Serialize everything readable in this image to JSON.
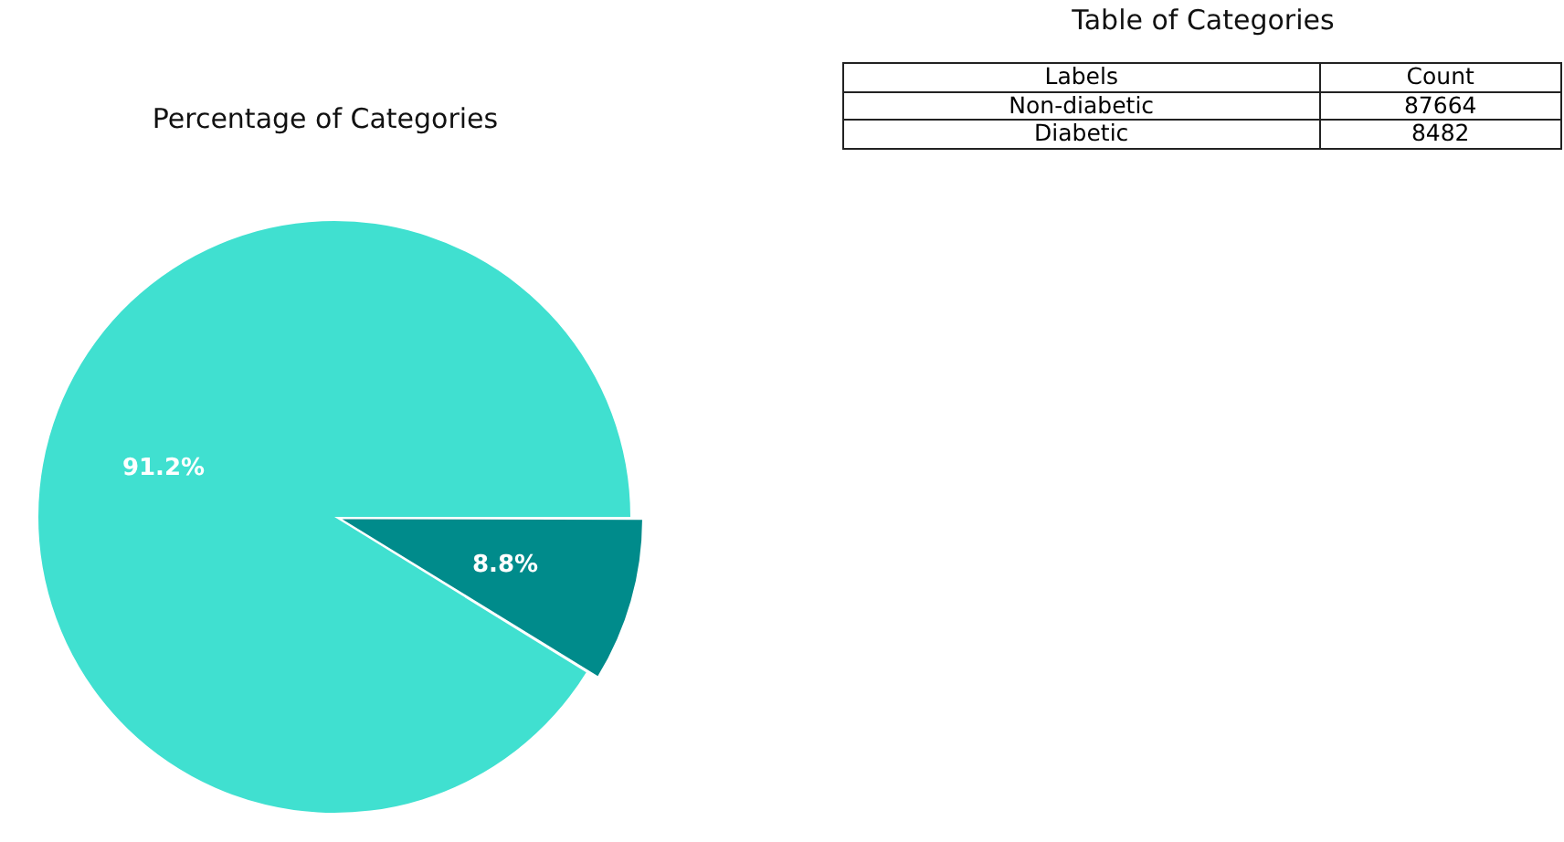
{
  "chart_data": [
    {
      "type": "pie",
      "title": "Percentage of Categories",
      "categories": [
        null,
        null
      ],
      "values": [
        91.2,
        8.8
      ],
      "colors": [
        "#40e0d0",
        "#008b8b"
      ],
      "value_labels": [
        "91.2%",
        "8.8%"
      ],
      "legend": false
    },
    {
      "type": "other",
      "title": "Table of Categories",
      "annotations": [
        "Labels",
        "Count"
      ],
      "categories": [
        "Non-diabetic",
        "Diabetic"
      ],
      "values": [
        87664,
        8482
      ],
      "data_labels": true
    }
  ]
}
